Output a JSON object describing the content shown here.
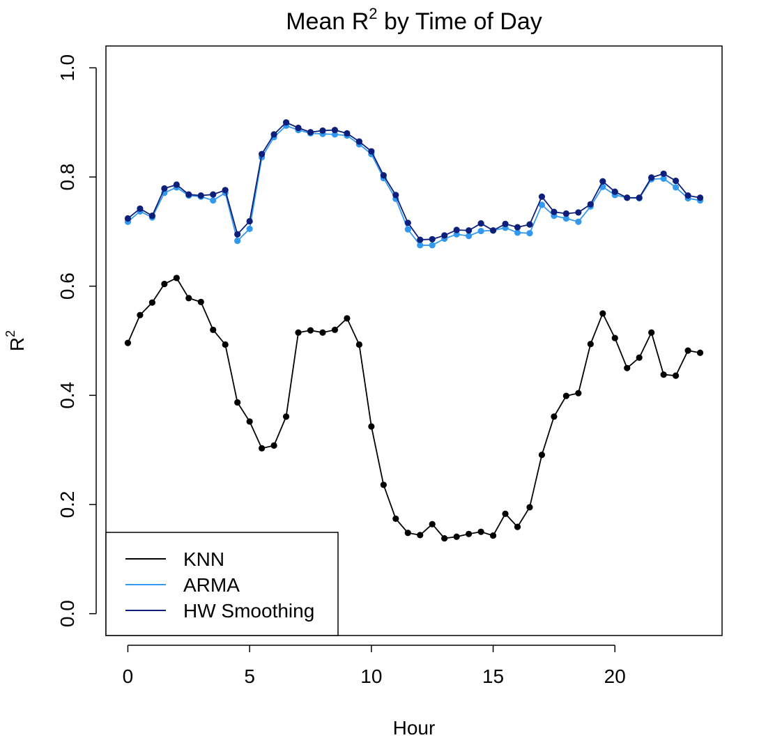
{
  "chart_data": {
    "type": "line",
    "title": "Mean R",
    "title_superscript": "2",
    "title_suffix": " by Time of Day",
    "xlabel": "Hour",
    "ylabel": "R",
    "ylabel_superscript": "2",
    "xlim": [
      -0.9,
      24.4
    ],
    "ylim": [
      -0.04,
      1.04
    ],
    "x_ticks": [
      0,
      5,
      10,
      15,
      20
    ],
    "y_ticks": [
      0.0,
      0.2,
      0.4,
      0.6,
      0.8,
      1.0
    ],
    "x_tick_labels": [
      "0",
      "5",
      "10",
      "15",
      "20"
    ],
    "y_tick_labels": [
      "0.0",
      "0.2",
      "0.4",
      "0.6",
      "0.8",
      "1.0"
    ],
    "grid": false,
    "legend_position": "bottom-left",
    "x": [
      0,
      0.5,
      1,
      1.5,
      2,
      2.5,
      3,
      3.5,
      4,
      4.5,
      5,
      5.5,
      6,
      6.5,
      7,
      7.5,
      8,
      8.5,
      9,
      9.5,
      10,
      10.5,
      11,
      11.5,
      12,
      12.5,
      13,
      13.5,
      14,
      14.5,
      15,
      15.5,
      16,
      16.5,
      17,
      17.5,
      18,
      18.5,
      19,
      19.5,
      20,
      20.5,
      21,
      21.5,
      22,
      22.5,
      23,
      23.5
    ],
    "series": [
      {
        "name": "KNN",
        "color": "#000000",
        "values": [
          0.496,
          0.547,
          0.57,
          0.604,
          0.615,
          0.578,
          0.571,
          0.52,
          0.493,
          0.387,
          0.352,
          0.303,
          0.308,
          0.361,
          0.515,
          0.519,
          0.515,
          0.52,
          0.541,
          0.493,
          0.343,
          0.236,
          0.174,
          0.148,
          0.144,
          0.164,
          0.138,
          0.141,
          0.146,
          0.15,
          0.143,
          0.183,
          0.159,
          0.195,
          0.291,
          0.361,
          0.399,
          0.404,
          0.494,
          0.55,
          0.505,
          0.45,
          0.469,
          0.515,
          0.438,
          0.436,
          0.482,
          0.478
        ]
      },
      {
        "name": "ARMA",
        "color": "#3399ee",
        "values": [
          0.718,
          0.737,
          0.726,
          0.771,
          0.781,
          0.766,
          0.764,
          0.757,
          0.771,
          0.683,
          0.705,
          0.836,
          0.873,
          0.894,
          0.886,
          0.88,
          0.879,
          0.878,
          0.876,
          0.86,
          0.842,
          0.798,
          0.76,
          0.704,
          0.675,
          0.675,
          0.687,
          0.695,
          0.692,
          0.701,
          0.702,
          0.707,
          0.698,
          0.697,
          0.749,
          0.729,
          0.724,
          0.718,
          0.746,
          0.782,
          0.767,
          0.762,
          0.761,
          0.796,
          0.797,
          0.781,
          0.761,
          0.757
        ]
      },
      {
        "name": "HW Smoothing",
        "color": "#0d1f7a",
        "values": [
          0.724,
          0.742,
          0.729,
          0.779,
          0.786,
          0.768,
          0.766,
          0.768,
          0.776,
          0.695,
          0.719,
          0.842,
          0.878,
          0.9,
          0.89,
          0.882,
          0.885,
          0.886,
          0.88,
          0.865,
          0.847,
          0.803,
          0.767,
          0.716,
          0.685,
          0.686,
          0.693,
          0.703,
          0.702,
          0.715,
          0.702,
          0.714,
          0.708,
          0.713,
          0.764,
          0.736,
          0.733,
          0.735,
          0.75,
          0.792,
          0.773,
          0.762,
          0.762,
          0.799,
          0.806,
          0.793,
          0.766,
          0.762
        ]
      }
    ]
  }
}
